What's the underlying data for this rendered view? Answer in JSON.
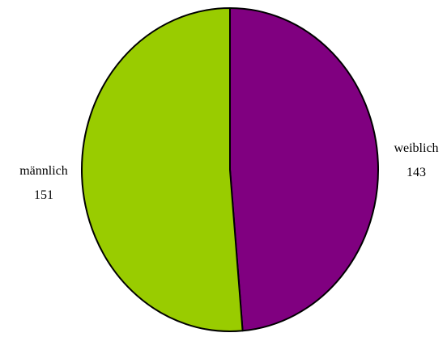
{
  "chart_data": {
    "type": "pie",
    "title": "",
    "start_angle_deg": 0,
    "direction": "clockwise",
    "slices": [
      {
        "label": "weiblich",
        "value": 143,
        "color": "#800080"
      },
      {
        "label": "männlich",
        "value": 151,
        "color": "#99cc00"
      }
    ],
    "edge_color": "#000000",
    "legend": "none"
  }
}
